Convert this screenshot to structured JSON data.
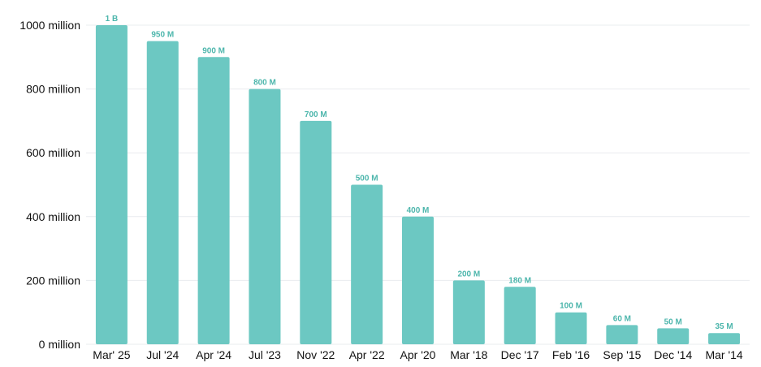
{
  "chart_data": {
    "type": "bar",
    "categories": [
      "Mar' 25",
      "Jul '24",
      "Apr '24",
      "Jul '23",
      "Nov '22",
      "Apr '22",
      "Apr '20",
      "Mar '18",
      "Dec '17",
      "Feb '16",
      "Sep '15",
      "Dec '14",
      "Mar '14"
    ],
    "values": [
      1000,
      950,
      900,
      800,
      700,
      500,
      400,
      200,
      180,
      100,
      60,
      50,
      35
    ],
    "data_labels": [
      "1 B",
      "950 M",
      "900 M",
      "800 M",
      "700 M",
      "500 M",
      "400 M",
      "200 M",
      "180 M",
      "100 M",
      "60 M",
      "50 M",
      "35 M"
    ],
    "y_ticks": [
      0,
      200,
      400,
      600,
      800,
      1000
    ],
    "y_tick_labels": [
      "0 million",
      "200 million",
      "400 million",
      "600 million",
      "800 million",
      "1000 million"
    ],
    "ylim": [
      0,
      1000
    ],
    "grid": true,
    "colors": {
      "bar": "#6cc8c2",
      "label": "#4db6ac",
      "grid": "#e9ecef",
      "text": "#111111"
    }
  }
}
